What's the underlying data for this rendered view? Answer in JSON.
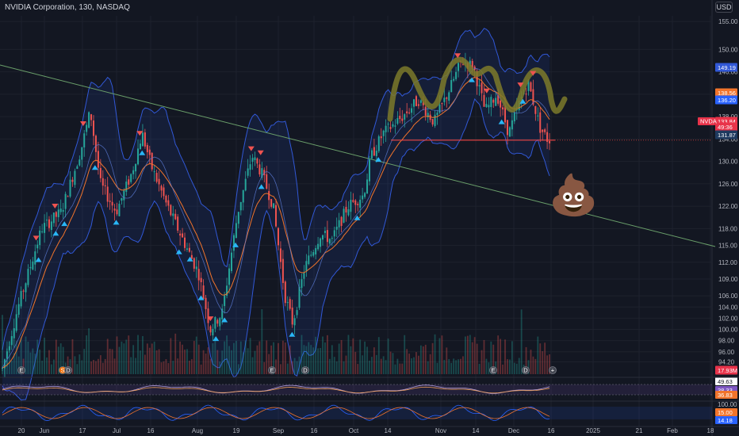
{
  "header": {
    "symbol_line": "NVIDIA Corporation, 130, NASDAQ",
    "currency": "USD"
  },
  "colors": {
    "background": "#131722",
    "grid": "#1e222d",
    "up": "#26a69a",
    "down": "#ef5350",
    "band": "#3158d6",
    "band_fill": "rgba(41,98,255,0.10)",
    "ema": "#f2742b",
    "trendline": "#6a9f6a",
    "support": "#ef4444",
    "wave": "#7c7a2a",
    "buy_marker": "#29b6f6",
    "sell_marker": "#ef5350",
    "price_tag": "#e8334a"
  },
  "chart_data": {
    "type": "candlestick",
    "title": "NVIDIA Corporation, 130, NASDAQ",
    "currency": "USD",
    "ylim": [
      92,
      156
    ],
    "y_ticks": [
      155.0,
      150.0,
      146.0,
      142.0,
      138.0,
      134.0,
      130.0,
      126.0,
      122.0,
      118.0,
      115.0,
      112.0,
      109.0,
      106.0,
      104.0,
      102.0,
      100.0,
      98.0,
      96.0,
      94.2
    ],
    "x_ticks": [
      "20",
      "Jun",
      "17",
      "Jul",
      "16",
      "Aug",
      "19",
      "Sep",
      "16",
      "Oct",
      "14",
      "Nov",
      "14",
      "Dec",
      "16",
      "2025",
      "21",
      "Feb",
      "18"
    ],
    "price_path": [
      {
        "t": 0,
        "p": 93
      },
      {
        "t": 20,
        "p": 104
      },
      {
        "t": 50,
        "p": 118
      },
      {
        "t": 75,
        "p": 121
      },
      {
        "t": 100,
        "p": 132
      },
      {
        "t": 112,
        "p": 139
      },
      {
        "t": 125,
        "p": 126
      },
      {
        "t": 145,
        "p": 121
      },
      {
        "t": 165,
        "p": 128
      },
      {
        "t": 178,
        "p": 135
      },
      {
        "t": 190,
        "p": 129
      },
      {
        "t": 210,
        "p": 122
      },
      {
        "t": 230,
        "p": 116
      },
      {
        "t": 250,
        "p": 110
      },
      {
        "t": 265,
        "p": 100
      },
      {
        "t": 280,
        "p": 103
      },
      {
        "t": 300,
        "p": 121
      },
      {
        "t": 318,
        "p": 131
      },
      {
        "t": 330,
        "p": 128
      },
      {
        "t": 345,
        "p": 122
      },
      {
        "t": 360,
        "p": 106
      },
      {
        "t": 370,
        "p": 101
      },
      {
        "t": 385,
        "p": 111
      },
      {
        "t": 405,
        "p": 117
      },
      {
        "t": 420,
        "p": 116
      },
      {
        "t": 440,
        "p": 122
      },
      {
        "t": 460,
        "p": 124
      },
      {
        "t": 470,
        "p": 131
      },
      {
        "t": 485,
        "p": 135
      },
      {
        "t": 510,
        "p": 138
      },
      {
        "t": 530,
        "p": 141
      },
      {
        "t": 550,
        "p": 137
      },
      {
        "t": 570,
        "p": 143
      },
      {
        "t": 585,
        "p": 148
      },
      {
        "t": 600,
        "p": 147
      },
      {
        "t": 615,
        "p": 139
      },
      {
        "t": 630,
        "p": 142
      },
      {
        "t": 645,
        "p": 135
      },
      {
        "t": 660,
        "p": 141
      },
      {
        "t": 670,
        "p": 144
      },
      {
        "t": 685,
        "p": 136
      },
      {
        "t": 695,
        "p": 133.8
      }
    ],
    "sell_signals_t": [
      43,
      67,
      103,
      175,
      265,
      317,
      329,
      580,
      617,
      660,
      676
    ],
    "buy_signals_t": [
      46,
      68,
      79,
      118,
      145,
      178,
      225,
      239,
      253,
      272,
      283,
      297,
      330,
      369,
      452,
      479,
      598,
      636,
      663
    ],
    "support_level": 133.8,
    "price_labels": {
      "last": "133.84",
      "countdown": "49:36",
      "upper": "149.19",
      "ema_a": "138.56",
      "ema_b": "136.20",
      "lower": "131.87"
    },
    "indicators": {
      "volume_label": "17.93M",
      "rsi_labels": [
        "49.63",
        "38.33",
        "36.83"
      ],
      "stoch_labels": [
        "100.00",
        "15.00",
        "14.18"
      ]
    },
    "annotations": [
      "trendline",
      "support line",
      "wave drawing",
      "poop emoji"
    ]
  }
}
